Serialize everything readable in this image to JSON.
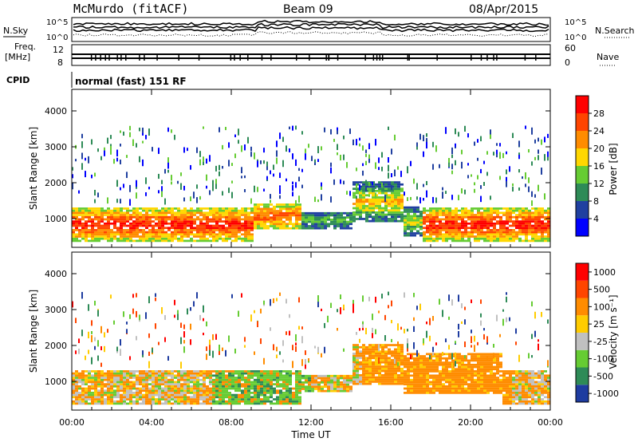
{
  "header": {
    "station": "McMurdo (fitACF)",
    "beam": "Beam 09",
    "date": "08/Apr/2015"
  },
  "top_panel": {
    "left_label": "N.Sky",
    "right_label": "N.Search",
    "left_ticks": [
      "10^5",
      "10^0"
    ],
    "right_ticks": [
      "10^5",
      "10^0"
    ]
  },
  "freq_panel": {
    "left_label": "Freq.",
    "left_unit": "[MHz]",
    "left_ticks": [
      "12",
      "8"
    ],
    "right_label": "Nave",
    "right_ticks": [
      "60",
      "0"
    ]
  },
  "cpid": {
    "label": "CPID",
    "value": "normal (fast) 151 RF"
  },
  "chart_data": [
    {
      "type": "heatmap",
      "panel": "power",
      "ylabel": "Slant Range [km]",
      "xlabel": "Time UT",
      "yticks": [
        "1000",
        "2000",
        "3000",
        "4000"
      ],
      "ylim": [
        200,
        4600
      ],
      "xlim": [
        "00:00",
        "24:00"
      ],
      "colorbar": {
        "label": "Power [dB]",
        "ticks": [
          "4",
          "8",
          "12",
          "16",
          "20",
          "24",
          "28"
        ],
        "colors": [
          "#0000ff",
          "#2040a0",
          "#2e8b57",
          "#66cc33",
          "#ffd700",
          "#ff8c00",
          "#ff4500",
          "#ff0000"
        ]
      }
    },
    {
      "type": "heatmap",
      "panel": "velocity",
      "ylabel": "Slant Range [km]",
      "xlabel": "Time UT",
      "yticks": [
        "1000",
        "2000",
        "3000",
        "4000"
      ],
      "ylim": [
        200,
        4600
      ],
      "xlim": [
        "00:00",
        "24:00"
      ],
      "colorbar": {
        "label": "Velocity [m s⁻¹]",
        "ticks": [
          "1000",
          "500",
          "100",
          "25",
          "-25",
          "-100",
          "-500",
          "-1000"
        ],
        "colors": [
          "#1e3ca0",
          "#2e8b57",
          "#66cc33",
          "#c0c0c0",
          "#ffcc00",
          "#ff8c00",
          "#ff4500",
          "#ff0000"
        ]
      }
    }
  ],
  "x_axis": {
    "ticks": [
      "00:00",
      "04:00",
      "08:00",
      "12:00",
      "16:00",
      "20:00",
      "00:00"
    ],
    "label": "Time UT"
  }
}
